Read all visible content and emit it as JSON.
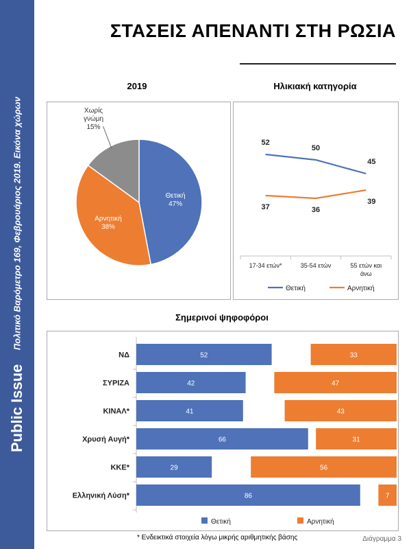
{
  "sidebar": {
    "brand": "Public Issue",
    "source": "Πολιτικό Βαρόμετρο 169, Φεβρουάριος 2019. Εικόνα χώρων"
  },
  "main_title": "ΣΤΑΣΕΙΣ ΑΠΕΝΑΝΤΙ ΣΤΗ ΡΩΣΙΑ",
  "footnote": "* Ενδεικτικά στοιχεία λόγω μικρής αριθμητικής βάσης",
  "figure_label": "Διάγραμμα 3",
  "colors": {
    "positive": "#4f72b8",
    "negative": "#ed7d31",
    "no_opinion": "#8c8c8c"
  },
  "chart_data": [
    {
      "type": "pie",
      "title": "2019",
      "slices": [
        {
          "label": "Θετική",
          "value": 47,
          "value_label": "47%",
          "color": "#4f72b8"
        },
        {
          "label": "Αρνητική",
          "value": 38,
          "value_label": "38%",
          "color": "#ed7d31"
        },
        {
          "label": "Χωρίς γνώμη",
          "label_lines": [
            "Χωρίς",
            "γνώμη"
          ],
          "value": 15,
          "value_label": "15%",
          "color": "#8c8c8c"
        }
      ]
    },
    {
      "type": "line",
      "title": "Ηλικιακή κατηγορία",
      "categories": [
        "17-34 ετών*",
        "35-54 ετών",
        "55 ετών και άνω"
      ],
      "category_lines": [
        [
          "17-34 ετών*"
        ],
        [
          "35-54 ετών"
        ],
        [
          "55 ετών και",
          "άνω"
        ]
      ],
      "series": [
        {
          "name": "Θετική",
          "values": [
            52,
            50,
            45
          ],
          "color": "#4f72b8"
        },
        {
          "name": "Αρνητική",
          "values": [
            37,
            36,
            39
          ],
          "color": "#ed7d31"
        }
      ],
      "legend": "bottom"
    },
    {
      "type": "bar",
      "orientation": "horizontal",
      "title": "Σημερινοί ψηφοφόροι",
      "categories": [
        "ΝΔ",
        "ΣΥΡΙΖΑ",
        "ΚΙΝΑΛ*",
        "Χρυσή Αυγή*",
        "ΚΚΕ*",
        "Ελληνική Λύση*"
      ],
      "series": [
        {
          "name": "Θετική",
          "values": [
            52,
            42,
            41,
            66,
            29,
            86
          ],
          "color": "#4f72b8",
          "align": "left"
        },
        {
          "name": "Αρνητική",
          "values": [
            33,
            47,
            43,
            31,
            56,
            7
          ],
          "color": "#ed7d31",
          "align": "right"
        }
      ],
      "xlim": [
        0,
        100
      ],
      "legend": "bottom"
    }
  ]
}
